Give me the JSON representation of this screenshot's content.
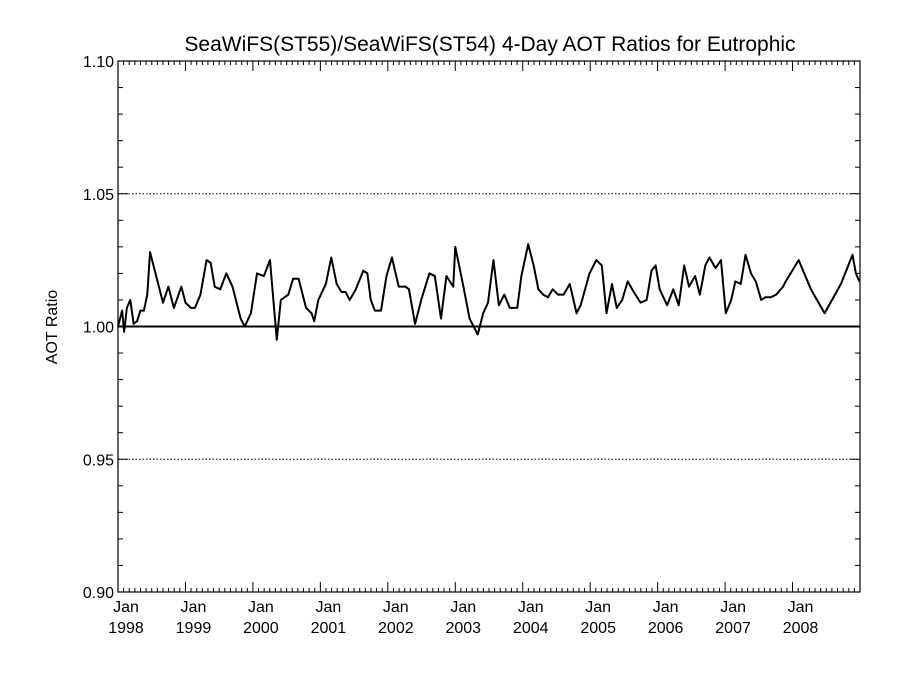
{
  "chart_data": {
    "type": "line",
    "title": "SeaWiFS(ST55)/SeaWiFS(ST54) 4-Day AOT Ratios for Eutrophic",
    "xlabel": "",
    "ylabel": "AOT Ratio",
    "ylim": [
      0.9,
      1.1
    ],
    "xlim": [
      1998.0,
      2009.0
    ],
    "y_ticks": [
      {
        "value": 0.9,
        "label": "0.90"
      },
      {
        "value": 0.95,
        "label": "0.95"
      },
      {
        "value": 1.0,
        "label": "1.00"
      },
      {
        "value": 1.05,
        "label": "1.05"
      },
      {
        "value": 1.1,
        "label": "1.10"
      }
    ],
    "x_ticks": [
      {
        "value": 1998,
        "month": "Jan",
        "year": "1998"
      },
      {
        "value": 1999,
        "month": "Jan",
        "year": "1999"
      },
      {
        "value": 2000,
        "month": "Jan",
        "year": "2000"
      },
      {
        "value": 2001,
        "month": "Jan",
        "year": "2001"
      },
      {
        "value": 2002,
        "month": "Jan",
        "year": "2002"
      },
      {
        "value": 2003,
        "month": "Jan",
        "year": "2003"
      },
      {
        "value": 2004,
        "month": "Jan",
        "year": "2004"
      },
      {
        "value": 2005,
        "month": "Jan",
        "year": "2005"
      },
      {
        "value": 2006,
        "month": "Jan",
        "year": "2006"
      },
      {
        "value": 2007,
        "month": "Jan",
        "year": "2007"
      },
      {
        "value": 2008,
        "month": "Jan",
        "year": "2008"
      }
    ],
    "grid": "dotted horizontal at 0.95 and 1.05",
    "reference_line": 1.0,
    "series": [
      {
        "color": "#000000",
        "x": [
          1998.0,
          1998.061,
          1998.091,
          1998.131,
          1998.182,
          1998.232,
          1998.283,
          1998.333,
          1998.384,
          1998.434,
          1998.475,
          1998.556,
          1998.667,
          1998.747,
          1998.828,
          1998.939,
          1999.0,
          1999.081,
          1999.141,
          1999.222,
          1999.313,
          1999.374,
          1999.434,
          1999.515,
          1999.606,
          1999.697,
          1999.818,
          1999.879,
          1999.97,
          2000.061,
          2000.162,
          2000.253,
          2000.354,
          2000.414,
          2000.525,
          2000.596,
          2000.677,
          2000.788,
          2000.869,
          2000.909,
          2000.97,
          2001.081,
          2001.162,
          2001.242,
          2001.313,
          2001.374,
          2001.434,
          2001.525,
          2001.636,
          2001.697,
          2001.747,
          2001.808,
          2001.899,
          2001.98,
          2002.061,
          2002.162,
          2002.263,
          2002.313,
          2002.404,
          2002.495,
          2002.616,
          2002.697,
          2002.788,
          2002.869,
          2002.97,
          2003.0,
          2003.121,
          2003.212,
          2003.333,
          2003.414,
          2003.485,
          2003.566,
          2003.646,
          2003.727,
          2003.808,
          2003.919,
          2003.98,
          2004.081,
          2004.162,
          2004.232,
          2004.303,
          2004.374,
          2004.444,
          2004.525,
          2004.606,
          2004.697,
          2004.798,
          2004.859,
          2004.99,
          2005.091,
          2005.172,
          2005.242,
          2005.323,
          2005.394,
          2005.475,
          2005.556,
          2005.646,
          2005.747,
          2005.838,
          2005.909,
          2005.97,
          2006.03,
          2006.141,
          2006.232,
          2006.313,
          2006.394,
          2006.465,
          2006.556,
          2006.626,
          2006.707,
          2006.768,
          2006.859,
          2006.939,
          2007.01,
          2007.091,
          2007.152,
          2007.232,
          2007.303,
          2007.384,
          2007.455,
          2007.535,
          2007.596,
          2007.677,
          2007.758,
          2007.859,
          2007.899,
          2008.091,
          2008.273,
          2008.475,
          2008.717,
          2008.889,
          2008.939,
          2008.99
        ],
        "values": [
          1.0,
          1.006,
          0.998,
          1.007,
          1.01,
          1.001,
          1.002,
          1.006,
          1.006,
          1.012,
          1.028,
          1.02,
          1.009,
          1.015,
          1.007,
          1.015,
          1.009,
          1.007,
          1.007,
          1.012,
          1.025,
          1.024,
          1.015,
          1.014,
          1.02,
          1.015,
          1.003,
          1.0,
          1.005,
          1.02,
          1.019,
          1.025,
          0.995,
          1.01,
          1.012,
          1.018,
          1.018,
          1.007,
          1.005,
          1.002,
          1.01,
          1.016,
          1.026,
          1.016,
          1.013,
          1.013,
          1.01,
          1.014,
          1.021,
          1.02,
          1.01,
          1.006,
          1.006,
          1.019,
          1.026,
          1.015,
          1.015,
          1.014,
          1.001,
          1.01,
          1.02,
          1.019,
          1.003,
          1.019,
          1.015,
          1.03,
          1.015,
          1.003,
          0.997,
          1.005,
          1.009,
          1.025,
          1.008,
          1.012,
          1.007,
          1.007,
          1.019,
          1.031,
          1.023,
          1.014,
          1.012,
          1.011,
          1.014,
          1.012,
          1.012,
          1.016,
          1.005,
          1.008,
          1.02,
          1.025,
          1.023,
          1.005,
          1.016,
          1.007,
          1.01,
          1.017,
          1.013,
          1.009,
          1.01,
          1.021,
          1.023,
          1.014,
          1.008,
          1.014,
          1.008,
          1.023,
          1.015,
          1.019,
          1.012,
          1.023,
          1.026,
          1.022,
          1.025,
          1.005,
          1.01,
          1.017,
          1.016,
          1.027,
          1.02,
          1.017,
          1.01,
          1.011,
          1.011,
          1.012,
          1.015,
          1.017,
          1.025,
          1.014,
          1.005,
          1.016,
          1.027,
          1.02,
          1.017
        ]
      }
    ]
  }
}
